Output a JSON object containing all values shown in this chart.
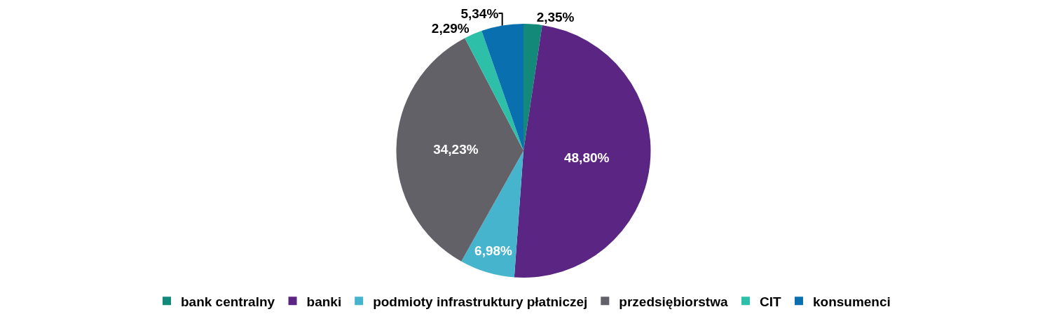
{
  "chart_data": {
    "type": "pie",
    "categories": [
      "bank centralny",
      "banki",
      "podmioty infrastruktury płatniczej",
      "przedsiębiorstwa",
      "CIT",
      "konsumenci"
    ],
    "values": [
      2.35,
      48.8,
      6.98,
      34.23,
      2.29,
      5.34
    ],
    "value_labels": [
      "2,35%",
      "48,80%",
      "6,98%",
      "34,23%",
      "2,29%",
      "5,34%"
    ],
    "colors": [
      "#13897a",
      "#5b2584",
      "#45b4cc",
      "#626168",
      "#2ebfa8",
      "#0a6fae"
    ],
    "legend": "bottom"
  }
}
